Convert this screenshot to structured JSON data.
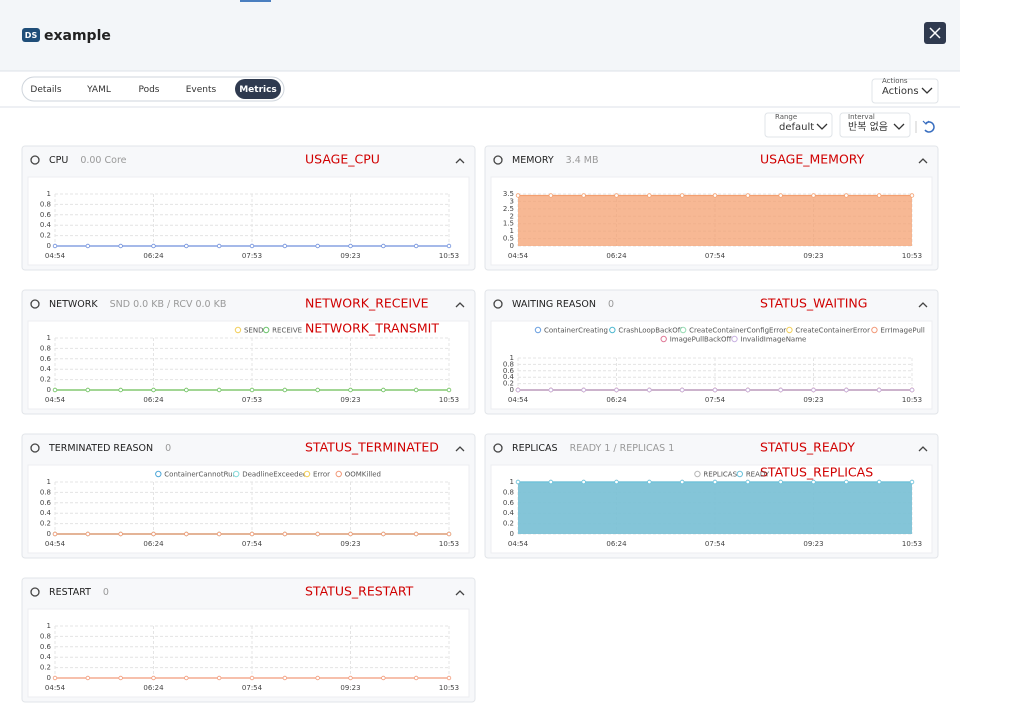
{
  "header": {
    "badge": "DS",
    "title": "example"
  },
  "tabs": [
    "Details",
    "YAML",
    "Pods",
    "Events",
    "Metrics"
  ],
  "active_tab": 4,
  "actions": {
    "label": "Actions",
    "value": "Actions"
  },
  "range": {
    "label": "Range",
    "value": "default"
  },
  "interval": {
    "label": "Interval",
    "value": "반복 없음"
  },
  "panels": [
    {
      "title": "CPU",
      "summary": "0.00 Core",
      "annotations": [
        "USAGE_CPU"
      ],
      "legend": false,
      "area": false,
      "ylim": [
        0,
        1
      ],
      "yticks": [
        0,
        0.2,
        0.4,
        0.6,
        0.8,
        1
      ],
      "categories": [
        "04:54",
        null,
        null,
        "06:24",
        null,
        null,
        "07:53",
        null,
        null,
        "09:23",
        null,
        null,
        "10:53"
      ],
      "series": [
        {
          "color": "#6f8fdc",
          "values": [
            0,
            0,
            0,
            0,
            0,
            0,
            0,
            0,
            0,
            0,
            0,
            0,
            0
          ]
        }
      ]
    },
    {
      "title": "MEMORY",
      "summary": "3.4 MB",
      "annotations": [
        "USAGE_MEMORY"
      ],
      "legend": false,
      "area": true,
      "ylim": [
        0,
        3.5
      ],
      "yticks": [
        0,
        0.5,
        1,
        1.5,
        2,
        2.5,
        3,
        3.5
      ],
      "categories": [
        "04:54",
        null,
        null,
        "06:24",
        null,
        null,
        "07:54",
        null,
        null,
        "09:23",
        null,
        null,
        "10:53"
      ],
      "series": [
        {
          "color": "#f4a070",
          "values": [
            3.4,
            3.4,
            3.4,
            3.4,
            3.4,
            3.4,
            3.4,
            3.4,
            3.4,
            3.4,
            3.4,
            3.4,
            3.4
          ]
        }
      ]
    },
    {
      "title": "NETWORK",
      "summary": "SND 0.0 KB / RCV 0.0 KB",
      "annotations": [
        "NETWORK_RECEIVE",
        "NETWORK_TRANSMIT"
      ],
      "legend": true,
      "area": false,
      "ylim": [
        0,
        1
      ],
      "yticks": [
        0,
        0.2,
        0.4,
        0.6,
        0.8,
        1
      ],
      "categories": [
        "04:54",
        null,
        null,
        "06:24",
        null,
        null,
        "07:53",
        null,
        null,
        "09:23",
        null,
        null,
        "10:53"
      ],
      "series": [
        {
          "name": "SEND",
          "color": "#f2cf5b",
          "values": [
            0,
            0,
            0,
            0,
            0,
            0,
            0,
            0,
            0,
            0,
            0,
            0,
            0
          ]
        },
        {
          "name": "RECEIVE",
          "color": "#6cc46c",
          "values": [
            0,
            0,
            0,
            0,
            0,
            0,
            0,
            0,
            0,
            0,
            0,
            0,
            0
          ]
        }
      ]
    },
    {
      "title": "WAITING REASON",
      "summary": "0",
      "annotations": [
        "STATUS_WAITING"
      ],
      "legend": true,
      "area": false,
      "ylim": [
        0,
        1
      ],
      "yticks": [
        0,
        0.2,
        0.4,
        0.6,
        0.8,
        1
      ],
      "categories": [
        "04:54",
        null,
        null,
        "06:24",
        null,
        null,
        "07:54",
        null,
        null,
        "09:23",
        null,
        null,
        "10:53"
      ],
      "series": [
        {
          "name": "ContainerCreating",
          "color": "#6a9fe0",
          "values": [
            0,
            0,
            0,
            0,
            0,
            0,
            0,
            0,
            0,
            0,
            0,
            0,
            0
          ]
        },
        {
          "name": "CrashLoopBackOff",
          "color": "#4fb8d0",
          "values": [
            0,
            0,
            0,
            0,
            0,
            0,
            0,
            0,
            0,
            0,
            0,
            0,
            0
          ]
        },
        {
          "name": "CreateContainerConfigError",
          "color": "#96dcb4",
          "values": [
            0,
            0,
            0,
            0,
            0,
            0,
            0,
            0,
            0,
            0,
            0,
            0,
            0
          ]
        },
        {
          "name": "CreateContainerError",
          "color": "#f2cf5b",
          "values": [
            0,
            0,
            0,
            0,
            0,
            0,
            0,
            0,
            0,
            0,
            0,
            0,
            0
          ]
        },
        {
          "name": "ErrImagePull",
          "color": "#f29a7a",
          "values": [
            0,
            0,
            0,
            0,
            0,
            0,
            0,
            0,
            0,
            0,
            0,
            0,
            0
          ]
        },
        {
          "name": "ImagePullBackOff",
          "color": "#e07a98",
          "values": [
            0,
            0,
            0,
            0,
            0,
            0,
            0,
            0,
            0,
            0,
            0,
            0,
            0
          ]
        },
        {
          "name": "InvalidImageName",
          "color": "#c9b2e2",
          "values": [
            0,
            0,
            0,
            0,
            0,
            0,
            0,
            0,
            0,
            0,
            0,
            0,
            0
          ]
        }
      ]
    },
    {
      "title": "TERMINATED REASON",
      "summary": "0",
      "annotations": [
        "STATUS_TERMINATED"
      ],
      "legend": true,
      "area": false,
      "ylim": [
        0,
        1
      ],
      "yticks": [
        0,
        0.2,
        0.4,
        0.6,
        0.8,
        1
      ],
      "categories": [
        "04:54",
        null,
        null,
        "06:24",
        null,
        null,
        "07:54",
        null,
        null,
        "09:23",
        null,
        null,
        "10:53"
      ],
      "series": [
        {
          "name": "ContainerCannotRun",
          "color": "#4fa8d8",
          "values": [
            0,
            0,
            0,
            0,
            0,
            0,
            0,
            0,
            0,
            0,
            0,
            0,
            0
          ]
        },
        {
          "name": "DeadlineExceeded",
          "color": "#86dcdc",
          "values": [
            0,
            0,
            0,
            0,
            0,
            0,
            0,
            0,
            0,
            0,
            0,
            0,
            0
          ]
        },
        {
          "name": "Error",
          "color": "#f2cf5b",
          "values": [
            0,
            0,
            0,
            0,
            0,
            0,
            0,
            0,
            0,
            0,
            0,
            0,
            0
          ]
        },
        {
          "name": "OOMKilled",
          "color": "#f29a7a",
          "values": [
            0,
            0,
            0,
            0,
            0,
            0,
            0,
            0,
            0,
            0,
            0,
            0,
            0
          ]
        }
      ]
    },
    {
      "title": "REPLICAS",
      "summary": "READY 1 / REPLICAS 1",
      "annotations": [
        "STATUS_READY",
        "STATUS_REPLICAS"
      ],
      "legend": true,
      "area": true,
      "ylim": [
        0,
        1
      ],
      "yticks": [
        0,
        0.2,
        0.4,
        0.6,
        0.8,
        1
      ],
      "categories": [
        "04:54",
        null,
        null,
        "06:24",
        null,
        null,
        "07:54",
        null,
        null,
        "09:23",
        null,
        null,
        "10:53"
      ],
      "series": [
        {
          "name": "REPLICAS",
          "color": "#b8b8b8",
          "values": [
            1,
            1,
            1,
            1,
            1,
            1,
            1,
            1,
            1,
            1,
            1,
            1,
            1
          ]
        },
        {
          "name": "READY",
          "color": "#6cc3dc",
          "values": [
            1,
            1,
            1,
            1,
            1,
            1,
            1,
            1,
            1,
            1,
            1,
            1,
            1
          ]
        }
      ]
    },
    {
      "title": "RESTART",
      "summary": "0",
      "annotations": [
        "STATUS_RESTART"
      ],
      "legend": false,
      "area": false,
      "ylim": [
        0,
        1
      ],
      "yticks": [
        0,
        0.2,
        0.4,
        0.6,
        0.8,
        1
      ],
      "categories": [
        "04:54",
        null,
        null,
        "06:24",
        null,
        null,
        "07:54",
        null,
        null,
        "09:23",
        null,
        null,
        "10:53"
      ],
      "series": [
        {
          "color": "#f29a7a",
          "values": [
            0,
            0,
            0,
            0,
            0,
            0,
            0,
            0,
            0,
            0,
            0,
            0,
            0
          ]
        }
      ]
    }
  ]
}
